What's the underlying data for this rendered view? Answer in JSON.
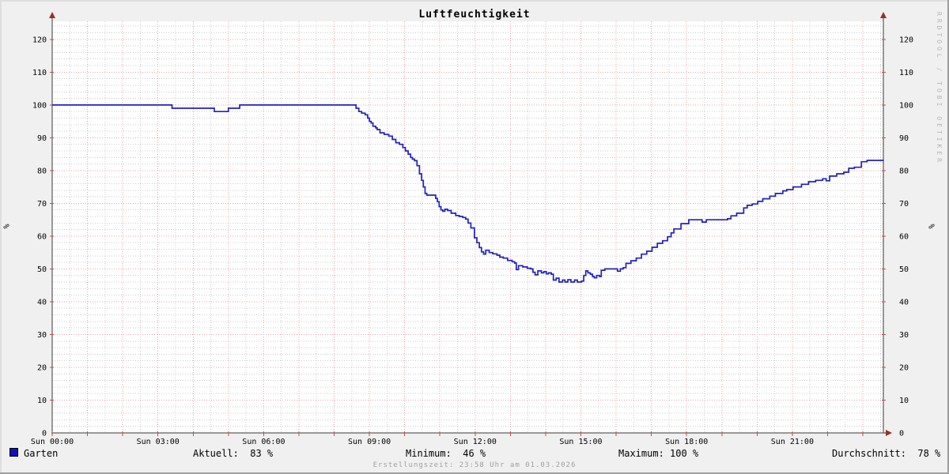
{
  "title": "Luftfeuchtigkeit",
  "watermark": "RRDTOOL / TOBI OETIKER",
  "footer_created": "Erstellungszeit: 23:58 Uhr am 01.03.2026",
  "legend": {
    "series_label": "Garten",
    "aktuell": "Aktuell:  83 %",
    "minimum": "Minimum:  46 %",
    "maximum": "Maximum: 100 %",
    "durchschnitt": "Durchschnitt:  78 %"
  },
  "colors": {
    "background": "#f0f0f0",
    "canvas": "#ffffff",
    "grid_minor": "#cdcdcd",
    "grid_major": "#efa5a5",
    "axis": "#3a3a3a",
    "arrow": "#992f28",
    "tick": "#cc4a4a",
    "line": "#2121c0",
    "legend_swatch": "#1010c0",
    "label_text": "#000000"
  },
  "chart_data": {
    "type": "line",
    "title": "Luftfeuchtigkeit",
    "ylabel_left": "%",
    "ylabel_right": "%",
    "ylim": [
      0,
      125.5
    ],
    "xlim_hours": [
      0,
      23.583
    ],
    "grid": {
      "y_minor_step": 2,
      "y_major_step": 10,
      "x_minor_step_hours": 0.5,
      "x_major_step_hours": 1
    },
    "y_ticks": [
      0,
      10,
      20,
      30,
      40,
      50,
      60,
      70,
      80,
      90,
      100,
      110,
      120
    ],
    "x_ticks": [
      [
        "Sun 00:00",
        0
      ],
      [
        "Sun 03:00",
        3
      ],
      [
        "Sun 06:00",
        6
      ],
      [
        "Sun 09:00",
        9
      ],
      [
        "Sun 12:00",
        12
      ],
      [
        "Sun 15:00",
        15
      ],
      [
        "Sun 18:00",
        18
      ],
      [
        "Sun 21:00",
        21
      ]
    ],
    "legend_position": "bottom",
    "stats": {
      "aktuell_pct": 83,
      "minimum_pct": 46,
      "maximum_pct": 100,
      "durchschnitt_pct": 78
    },
    "series": [
      {
        "name": "Garten",
        "unit": "%",
        "points": [
          [
            0,
            100
          ],
          [
            3.35,
            100
          ],
          [
            3.4,
            99
          ],
          [
            4.55,
            99
          ],
          [
            4.6,
            98
          ],
          [
            4.95,
            98
          ],
          [
            5.0,
            99
          ],
          [
            5.28,
            99
          ],
          [
            5.32,
            100
          ],
          [
            8.55,
            100
          ],
          [
            8.62,
            99
          ],
          [
            8.7,
            98
          ],
          [
            8.78,
            97.5
          ],
          [
            8.88,
            97
          ],
          [
            8.95,
            96
          ],
          [
            9.0,
            95
          ],
          [
            9.05,
            94.5
          ],
          [
            9.1,
            93.5
          ],
          [
            9.18,
            93
          ],
          [
            9.22,
            92.5
          ],
          [
            9.3,
            91.5
          ],
          [
            9.42,
            91
          ],
          [
            9.55,
            90.5
          ],
          [
            9.65,
            89.5
          ],
          [
            9.75,
            88.5
          ],
          [
            9.85,
            88
          ],
          [
            9.95,
            87
          ],
          [
            10.02,
            86
          ],
          [
            10.1,
            85
          ],
          [
            10.17,
            84
          ],
          [
            10.22,
            83.5
          ],
          [
            10.28,
            83
          ],
          [
            10.35,
            81.5
          ],
          [
            10.42,
            79
          ],
          [
            10.48,
            77
          ],
          [
            10.53,
            75
          ],
          [
            10.58,
            73
          ],
          [
            10.63,
            72.5
          ],
          [
            10.8,
            72.5
          ],
          [
            10.88,
            71.5
          ],
          [
            10.93,
            70.5
          ],
          [
            10.98,
            69
          ],
          [
            11.03,
            68
          ],
          [
            11.08,
            67.6
          ],
          [
            11.14,
            68.2
          ],
          [
            11.22,
            67.8
          ],
          [
            11.32,
            67
          ],
          [
            11.45,
            66.3
          ],
          [
            11.55,
            66
          ],
          [
            11.65,
            65.7
          ],
          [
            11.73,
            65.2
          ],
          [
            11.8,
            64
          ],
          [
            11.88,
            62.5
          ],
          [
            11.98,
            59.5
          ],
          [
            12.05,
            58
          ],
          [
            12.12,
            56.5
          ],
          [
            12.18,
            55.2
          ],
          [
            12.24,
            54.5
          ],
          [
            12.3,
            55.7
          ],
          [
            12.4,
            55
          ],
          [
            12.5,
            54.6
          ],
          [
            12.62,
            54.2
          ],
          [
            12.7,
            53.6
          ],
          [
            12.8,
            53.3
          ],
          [
            12.92,
            52.6
          ],
          [
            13.05,
            52.2
          ],
          [
            13.12,
            51.8
          ],
          [
            13.17,
            49.8
          ],
          [
            13.23,
            51
          ],
          [
            13.35,
            50.6
          ],
          [
            13.48,
            50.2
          ],
          [
            13.58,
            50
          ],
          [
            13.64,
            49
          ],
          [
            13.7,
            48.2
          ],
          [
            13.78,
            49.4
          ],
          [
            13.88,
            48.8
          ],
          [
            13.95,
            49.2
          ],
          [
            14.02,
            48.5
          ],
          [
            14.08,
            48.8
          ],
          [
            14.16,
            48.4
          ],
          [
            14.22,
            46.6
          ],
          [
            14.3,
            47.2
          ],
          [
            14.38,
            46
          ],
          [
            14.48,
            46.6
          ],
          [
            14.55,
            46
          ],
          [
            14.63,
            46.7
          ],
          [
            14.72,
            46
          ],
          [
            14.82,
            46.6
          ],
          [
            14.9,
            46
          ],
          [
            15.02,
            46.3
          ],
          [
            15.08,
            48
          ],
          [
            15.14,
            49.4
          ],
          [
            15.2,
            48.8
          ],
          [
            15.27,
            48.4
          ],
          [
            15.33,
            47.7
          ],
          [
            15.38,
            47.3
          ],
          [
            15.45,
            48
          ],
          [
            15.53,
            47.7
          ],
          [
            15.58,
            49.6
          ],
          [
            15.68,
            50
          ],
          [
            15.97,
            50
          ],
          [
            16.04,
            49.3
          ],
          [
            16.12,
            50
          ],
          [
            16.2,
            50.4
          ],
          [
            16.28,
            51.7
          ],
          [
            16.42,
            52.5
          ],
          [
            16.57,
            53.3
          ],
          [
            16.72,
            54.5
          ],
          [
            16.87,
            55.4
          ],
          [
            17.02,
            56.6
          ],
          [
            17.17,
            57.8
          ],
          [
            17.32,
            58.6
          ],
          [
            17.46,
            59.8
          ],
          [
            17.56,
            61
          ],
          [
            17.64,
            62.2
          ],
          [
            17.84,
            63.8
          ],
          [
            18.06,
            65
          ],
          [
            18.36,
            65
          ],
          [
            18.44,
            64.3
          ],
          [
            18.56,
            65
          ],
          [
            18.9,
            65
          ],
          [
            19.16,
            65.3
          ],
          [
            19.26,
            66.2
          ],
          [
            19.42,
            67
          ],
          [
            19.62,
            68.6
          ],
          [
            19.72,
            69.4
          ],
          [
            19.86,
            69.8
          ],
          [
            20.02,
            70.6
          ],
          [
            20.16,
            71.4
          ],
          [
            20.36,
            72.2
          ],
          [
            20.52,
            73
          ],
          [
            20.73,
            73.8
          ],
          [
            20.84,
            74.2
          ],
          [
            21.02,
            75
          ],
          [
            21.26,
            75.8
          ],
          [
            21.46,
            76.6
          ],
          [
            21.66,
            77
          ],
          [
            21.86,
            77.5
          ],
          [
            21.96,
            76.9
          ],
          [
            22.06,
            78.3
          ],
          [
            22.26,
            79
          ],
          [
            22.46,
            79.5
          ],
          [
            22.6,
            80.7
          ],
          [
            22.76,
            81
          ],
          [
            22.96,
            82.7
          ],
          [
            23.12,
            83.1
          ],
          [
            23.58,
            83
          ]
        ]
      }
    ]
  }
}
